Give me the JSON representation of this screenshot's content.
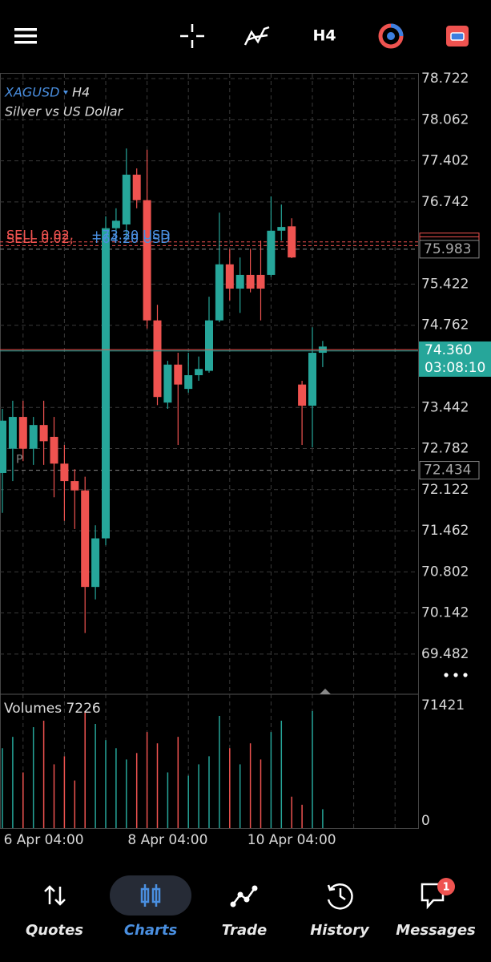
{
  "toolbar": {
    "timeframe": "H4"
  },
  "chart_data": [
    {
      "type": "candlestick",
      "symbol": "XAGUSD",
      "timeframe": "H4",
      "description": "Silver vs US Dollar",
      "categories": [
        null,
        null,
        null,
        null,
        "6 Apr 04:00",
        null,
        null,
        null,
        null,
        null,
        null,
        null,
        null,
        null,
        null,
        null,
        "8 Apr 04:00",
        null,
        null,
        null,
        null,
        null,
        null,
        null,
        null,
        null,
        null,
        null,
        "10 Apr 04:00",
        null,
        null,
        null
      ],
      "open": [
        72.39,
        72.78,
        73.29,
        72.78,
        73.16,
        72.97,
        72.54,
        72.26,
        72.11,
        70.56,
        71.34,
        76.32,
        76.38,
        77.18,
        76.77,
        74.84,
        73.52,
        74.13,
        73.74,
        73.96,
        74.03,
        74.84,
        75.74,
        75.35,
        75.57,
        75.57,
        75.57,
        76.28,
        76.35,
        73.81,
        73.47,
        74.32
      ],
      "high": [
        73.42,
        73.55,
        73.55,
        73.29,
        73.55,
        73.29,
        72.84,
        72.45,
        72.33,
        71.55,
        76.51,
        76.64,
        77.6,
        77.28,
        77.58,
        75.09,
        74.19,
        74.32,
        74.32,
        74.26,
        75.22,
        76.57,
        75.99,
        75.85,
        75.99,
        76.12,
        76.83,
        76.7,
        76.48,
        73.87,
        74.73,
        74.51
      ],
      "low": [
        71.75,
        72.26,
        72.58,
        72.52,
        72.52,
        72.0,
        71.62,
        71.49,
        69.82,
        70.36,
        71.23,
        76.12,
        76.12,
        76.64,
        74.71,
        73.48,
        73.42,
        72.84,
        73.68,
        73.87,
        74.0,
        74.81,
        75.16,
        74.96,
        75.29,
        74.84,
        75.54,
        76.12,
        75.84,
        72.84,
        72.8,
        74.09
      ],
      "close": [
        73.23,
        73.29,
        72.78,
        73.16,
        72.9,
        72.54,
        72.26,
        72.11,
        70.56,
        71.34,
        76.32,
        76.44,
        77.18,
        76.77,
        74.84,
        73.61,
        74.13,
        73.81,
        73.96,
        74.06,
        74.84,
        75.74,
        75.35,
        75.57,
        75.35,
        75.35,
        76.28,
        76.34,
        75.85,
        73.47,
        74.32,
        74.42
      ],
      "up_color": "#26a69a",
      "down_color": "#ef5350",
      "ylim": [
        68.85,
        78.8
      ],
      "yticks": [
        78.722,
        78.062,
        77.402,
        76.742,
        75.422,
        74.762,
        73.442,
        72.782,
        72.122,
        71.462,
        70.802,
        70.142,
        69.482
      ],
      "grid": true,
      "current_price": {
        "value": 74.36,
        "label": "74.360"
      },
      "countdown": "03:08:10",
      "price_levels": [
        75.983,
        72.434
      ],
      "orders": [
        {
          "side": "SELL 0.02,",
          "profit": "+73.20 USD",
          "price": 76.1
        },
        {
          "side": "SELL 0.02,",
          "profit": "+64.20 USD",
          "price": 76.04
        }
      ],
      "marker": "P"
    },
    {
      "type": "volume",
      "title": "Volumes 7226",
      "values": [
        45000,
        52000,
        30000,
        58000,
        62000,
        35000,
        40000,
        25000,
        68000,
        60000,
        50000,
        45000,
        38000,
        42000,
        55000,
        48000,
        30000,
        52000,
        28000,
        35000,
        40000,
        65000,
        45000,
        35000,
        48000,
        38000,
        55000,
        62000,
        15000,
        10000,
        68000,
        7226
      ],
      "ylim": [
        0,
        71421
      ],
      "yticks": [
        0,
        71421
      ]
    }
  ],
  "nav": [
    {
      "label": "Quotes"
    },
    {
      "label": "Charts"
    },
    {
      "label": "Trade"
    },
    {
      "label": "History"
    },
    {
      "label": "Messages",
      "badge": "1"
    }
  ]
}
